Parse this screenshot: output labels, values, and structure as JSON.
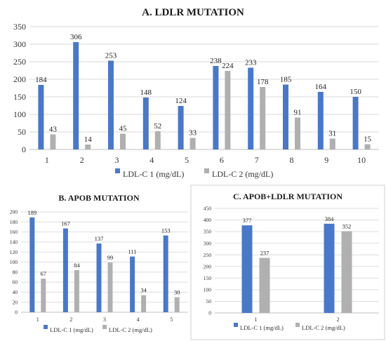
{
  "chart_data": [
    {
      "type": "bar",
      "title": "A.   LDLR MUTATION",
      "categories": [
        "1",
        "2",
        "3",
        "4",
        "5",
        "6",
        "7",
        "8",
        "9",
        "10"
      ],
      "series": [
        {
          "name": "LDL-C 1 (mg/dL)",
          "values": [
            184,
            306,
            253,
            148,
            124,
            238,
            233,
            185,
            164,
            150
          ],
          "color": "#4a78c8"
        },
        {
          "name": "LDL-C 2 (mg/dL)",
          "values": [
            43,
            14,
            45,
            52,
            33,
            224,
            178,
            91,
            31,
            15
          ],
          "color": "#b0b0b0"
        }
      ],
      "ylim": [
        0,
        350
      ],
      "yticks": [
        0,
        50,
        100,
        150,
        200,
        250,
        300,
        350
      ],
      "grid": true,
      "legend": "bottom",
      "xlabel": "",
      "ylabel": ""
    },
    {
      "type": "bar",
      "title": "B.   APOB MUTATION",
      "categories": [
        "1",
        "2",
        "3",
        "4",
        "5"
      ],
      "series": [
        {
          "name": "LDL-C 1 (mg/dL)",
          "values": [
            189,
            167,
            137,
            111,
            153
          ],
          "color": "#4a78c8"
        },
        {
          "name": "LDL-C 2 (mg/dL)",
          "values": [
            67,
            84,
            99,
            34,
            30
          ],
          "color": "#b0b0b0"
        }
      ],
      "ylim": [
        0,
        200
      ],
      "yticks": [
        0,
        20,
        40,
        60,
        80,
        100,
        120,
        140,
        160,
        180,
        200
      ],
      "grid": true,
      "legend": "bottom",
      "xlabel": "",
      "ylabel": ""
    },
    {
      "type": "bar",
      "title": "C.   APOB+LDLR MUTATION",
      "categories": [
        "1",
        "2"
      ],
      "series": [
        {
          "name": "LDL-C 1 (mg/dL)",
          "values": [
            377,
            384
          ],
          "color": "#4a78c8"
        },
        {
          "name": "LDL-C 2 (mg/dL)",
          "values": [
            237,
            352
          ],
          "color": "#b0b0b0"
        }
      ],
      "ylim": [
        0,
        450
      ],
      "yticks": [
        0,
        50,
        100,
        150,
        200,
        250,
        300,
        350,
        400,
        450
      ],
      "grid": true,
      "legend": "bottom",
      "xlabel": "",
      "ylabel": ""
    }
  ]
}
